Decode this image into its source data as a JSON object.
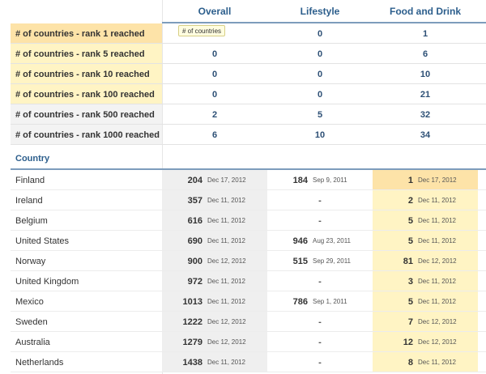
{
  "columns": {
    "overall": "Overall",
    "lifestyle": "Lifestyle",
    "food": "Food and Drink"
  },
  "summary": [
    {
      "label": "# of countries - rank 1 reached",
      "overall": "",
      "lifestyle": "0",
      "food": "1"
    },
    {
      "label": "# of countries - rank 5 reached",
      "overall": "0",
      "lifestyle": "0",
      "food": "6"
    },
    {
      "label": "# of countries - rank 10 reached",
      "overall": "0",
      "lifestyle": "0",
      "food": "10"
    },
    {
      "label": "# of countries - rank 100 reached",
      "overall": "0",
      "lifestyle": "0",
      "food": "21"
    },
    {
      "label": "# of countries - rank 500 reached",
      "overall": "2",
      "lifestyle": "5",
      "food": "32"
    },
    {
      "label": "# of countries - rank 1000 reached",
      "overall": "6",
      "lifestyle": "10",
      "food": "34"
    }
  ],
  "tooltip": "# of countries",
  "country_header": "Country",
  "countries": [
    {
      "name": "Finland",
      "overall_rank": "204",
      "overall_date": "Dec 17, 2012",
      "lifestyle_rank": "184",
      "lifestyle_date": "Sep 9, 2011",
      "food_rank": "1",
      "food_date": "Dec 17, 2012"
    },
    {
      "name": "Ireland",
      "overall_rank": "357",
      "overall_date": "Dec 11, 2012",
      "lifestyle_rank": "-",
      "lifestyle_date": "",
      "food_rank": "2",
      "food_date": "Dec 11, 2012"
    },
    {
      "name": "Belgium",
      "overall_rank": "616",
      "overall_date": "Dec 11, 2012",
      "lifestyle_rank": "-",
      "lifestyle_date": "",
      "food_rank": "5",
      "food_date": "Dec 11, 2012"
    },
    {
      "name": "United States",
      "overall_rank": "690",
      "overall_date": "Dec 11, 2012",
      "lifestyle_rank": "946",
      "lifestyle_date": "Aug 23, 2011",
      "food_rank": "5",
      "food_date": "Dec 11, 2012"
    },
    {
      "name": "Norway",
      "overall_rank": "900",
      "overall_date": "Dec 12, 2012",
      "lifestyle_rank": "515",
      "lifestyle_date": "Sep 29, 2011",
      "food_rank": "81",
      "food_date": "Dec 12, 2012"
    },
    {
      "name": "United Kingdom",
      "overall_rank": "972",
      "overall_date": "Dec 11, 2012",
      "lifestyle_rank": "-",
      "lifestyle_date": "",
      "food_rank": "3",
      "food_date": "Dec 11, 2012"
    },
    {
      "name": "Mexico",
      "overall_rank": "1013",
      "overall_date": "Dec 11, 2012",
      "lifestyle_rank": "786",
      "lifestyle_date": "Sep 1, 2011",
      "food_rank": "5",
      "food_date": "Dec 11, 2012"
    },
    {
      "name": "Sweden",
      "overall_rank": "1222",
      "overall_date": "Dec 12, 2012",
      "lifestyle_rank": "-",
      "lifestyle_date": "",
      "food_rank": "7",
      "food_date": "Dec 12, 2012"
    },
    {
      "name": "Australia",
      "overall_rank": "1279",
      "overall_date": "Dec 12, 2012",
      "lifestyle_rank": "-",
      "lifestyle_date": "",
      "food_rank": "12",
      "food_date": "Dec 12, 2012"
    },
    {
      "name": "Netherlands",
      "overall_rank": "1438",
      "overall_date": "Dec 11, 2012",
      "lifestyle_rank": "-",
      "lifestyle_date": "",
      "food_rank": "8",
      "food_date": "Dec 11, 2012"
    }
  ],
  "colors": {
    "header_text": "#2c5e8c",
    "rank1_bg": "#fde3a8",
    "rank_top_bg": "#fff4c4",
    "overall_col_bg": "#efefef"
  }
}
